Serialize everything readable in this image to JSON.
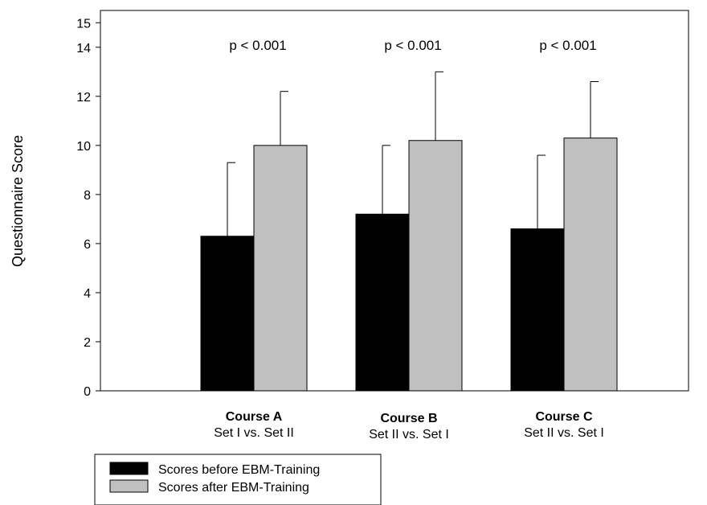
{
  "chart_data": {
    "type": "bar",
    "title": "",
    "ylabel": "Questionnaire Score",
    "xlabel": "",
    "ylim": [
      0,
      15.5
    ],
    "yticks": [
      0,
      2,
      4,
      6,
      8,
      10,
      12,
      14,
      15
    ],
    "grid": false,
    "legend_position": "bottom-left",
    "categories": [
      {
        "name": "Course A",
        "sub": "Set I vs. Set II",
        "p": "p < 0.001"
      },
      {
        "name": "Course B",
        "sub": "Set II vs. Set I",
        "p": "p < 0.001"
      },
      {
        "name": "Course C",
        "sub": "Set II vs. Set I",
        "p": "p < 0.001"
      }
    ],
    "series": [
      {
        "name": "Scores before EBM-Training",
        "color": "#000000",
        "values": [
          6.3,
          7.2,
          6.6
        ],
        "errors": [
          3.0,
          2.8,
          3.0
        ]
      },
      {
        "name": "Scores after EBM-Training",
        "color": "#c0c0c0",
        "values": [
          10.0,
          10.2,
          10.3
        ],
        "errors": [
          2.2,
          2.8,
          2.3
        ]
      }
    ]
  }
}
